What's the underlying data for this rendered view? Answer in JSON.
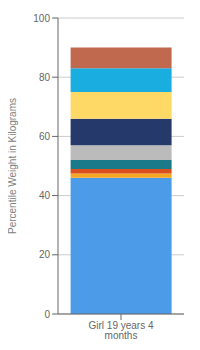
{
  "chart_data": {
    "type": "bar",
    "stacked": true,
    "categories": [
      "Girl 19 years 4 months"
    ],
    "series": [
      {
        "color": "#4C9BE8",
        "values": [
          46.0
        ]
      },
      {
        "color": "#F5A623",
        "values": [
          1.5
        ]
      },
      {
        "color": "#D94F1E",
        "values": [
          1.5
        ]
      },
      {
        "color": "#1A7A8A",
        "values": [
          3.0
        ]
      },
      {
        "color": "#BBBBBB",
        "values": [
          5.0
        ]
      },
      {
        "color": "#253A6B",
        "values": [
          9.0
        ]
      },
      {
        "color": "#FFD966",
        "values": [
          9.0
        ]
      },
      {
        "color": "#1AAEE0",
        "values": [
          8.0
        ]
      },
      {
        "color": "#C1694F",
        "values": [
          7.0
        ]
      }
    ],
    "ylabel": "Percentile Weight in Kilograms",
    "ylim": [
      0,
      100
    ],
    "yticks": [
      0,
      20,
      40,
      60,
      80,
      100
    ],
    "grid": true
  }
}
